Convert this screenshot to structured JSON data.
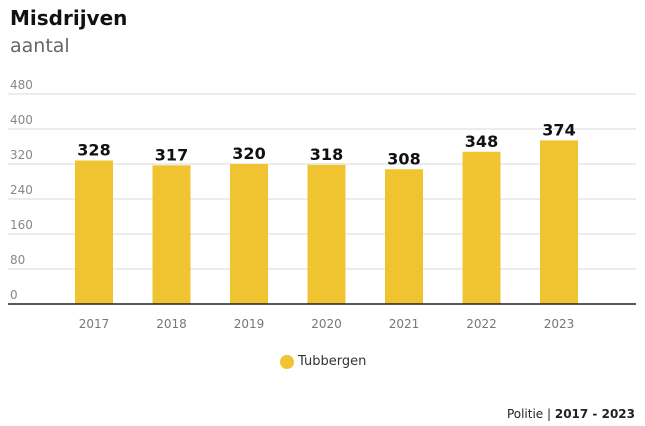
{
  "chart_data": {
    "type": "bar",
    "title": "Misdrijven",
    "subtitle": "aantal",
    "categories": [
      "2017",
      "2018",
      "2019",
      "2020",
      "2021",
      "2022",
      "2023"
    ],
    "series": [
      {
        "name": "Tubbergen",
        "values": [
          328,
          317,
          320,
          318,
          308,
          348,
          374
        ]
      }
    ],
    "ylim": [
      0,
      480
    ],
    "yticks": [
      "0",
      "80",
      "160",
      "240",
      "320",
      "400",
      "480"
    ],
    "bar_color": "#f0c330",
    "grid": true,
    "legend_position": "bottom-center"
  },
  "source": {
    "name": "Politie",
    "separator": " | ",
    "period": "2017 - 2023"
  }
}
